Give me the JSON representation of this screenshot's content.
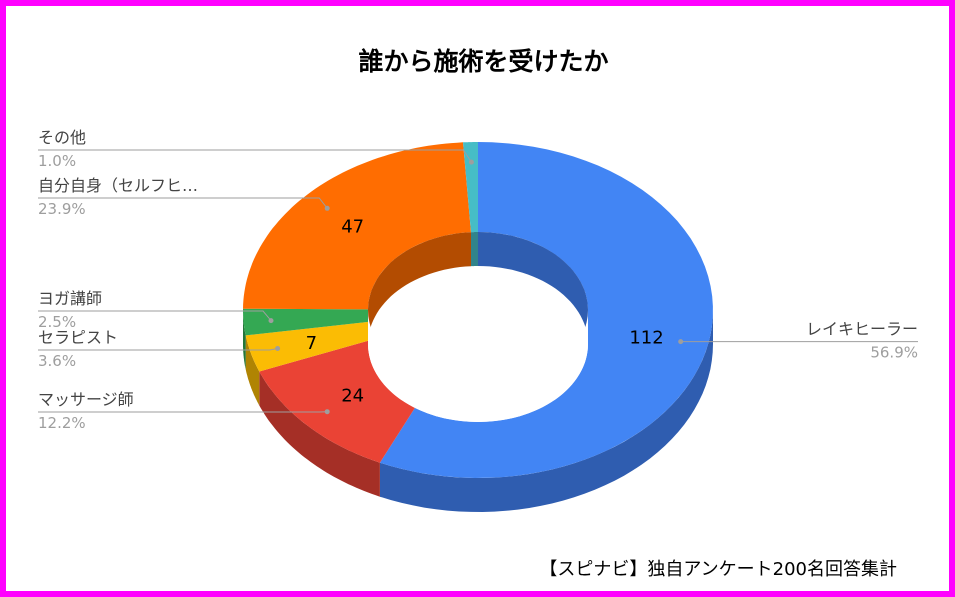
{
  "chart_data": {
    "type": "pie",
    "title": "誰から施術を受けたか",
    "source_note": "【スピナビ】独自アンケート200名回答集計",
    "donut": true,
    "slices": [
      {
        "label": "レイキヒーラー",
        "value": 112,
        "percent": "56.9%",
        "color": "#4285f4",
        "side_color": "#2f5db0",
        "value_label": "112"
      },
      {
        "label": "マッサージ師",
        "value": 24,
        "percent": "12.2%",
        "color": "#ea4335",
        "side_color": "#a52f26",
        "value_label": "24"
      },
      {
        "label": "セラピスト",
        "value": 7,
        "percent": "3.6%",
        "color": "#fbbc04",
        "side_color": "#b08403",
        "value_label": "7"
      },
      {
        "label": "ヨガ講師",
        "value": 5,
        "percent": "2.5%",
        "color": "#34a853",
        "side_color": "#247639",
        "value_label": ""
      },
      {
        "label": "自分自身（セルフヒ…",
        "value": 47,
        "percent": "23.9%",
        "color": "#ff6d01",
        "side_color": "#b34c01",
        "value_label": "47"
      },
      {
        "label": "その他",
        "value": 2,
        "percent": "1.0%",
        "color": "#46bdc6",
        "side_color": "#31848b",
        "value_label": ""
      }
    ]
  }
}
